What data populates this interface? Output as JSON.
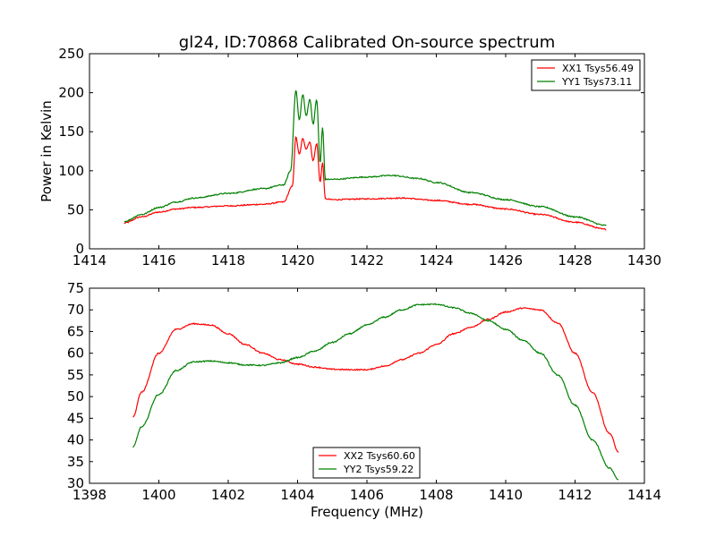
{
  "chart_data": [
    {
      "type": "line",
      "title": "gl24, ID:70868 Calibrated On-source spectrum",
      "xlabel": "",
      "ylabel": "Power in Kelvin",
      "xlim": [
        1414,
        1430
      ],
      "ylim": [
        0,
        250
      ],
      "xticks": [
        "1414",
        "1416",
        "1418",
        "1420",
        "1422",
        "1424",
        "1426",
        "1428",
        "1430"
      ],
      "yticks": [
        "0",
        "50",
        "100",
        "150",
        "200",
        "250"
      ],
      "legend_position": "top-right",
      "series": [
        {
          "name": "XX1 Tsys56.49",
          "color": "#ff0000",
          "x": [
            1415.0,
            1415.5,
            1416.0,
            1416.5,
            1417.0,
            1418.0,
            1419.0,
            1419.6,
            1419.85,
            1419.95,
            1420.05,
            1420.15,
            1420.25,
            1420.35,
            1420.45,
            1420.55,
            1420.65,
            1420.72,
            1420.8,
            1421.0,
            1422.0,
            1423.0,
            1424.0,
            1425.0,
            1426.0,
            1427.0,
            1428.0,
            1428.9
          ],
          "values": [
            33,
            41,
            47,
            51,
            53,
            55,
            57,
            60,
            80,
            143,
            121,
            141,
            128,
            137,
            113,
            135,
            86,
            110,
            64,
            63,
            64,
            65,
            62,
            57,
            51,
            44,
            34,
            25
          ]
        },
        {
          "name": "YY1 Tsys73.11",
          "color": "#008000",
          "x": [
            1415.0,
            1415.5,
            1416.0,
            1416.5,
            1417.0,
            1418.0,
            1419.0,
            1419.6,
            1419.8,
            1419.95,
            1420.05,
            1420.15,
            1420.25,
            1420.35,
            1420.45,
            1420.55,
            1420.65,
            1420.72,
            1420.8,
            1421.0,
            1422.0,
            1422.7,
            1423.5,
            1424.0,
            1425.0,
            1426.0,
            1427.0,
            1428.0,
            1428.9
          ],
          "values": [
            35,
            44,
            53,
            60,
            65,
            71,
            77,
            82,
            100,
            203,
            165,
            198,
            170,
            192,
            160,
            191,
            110,
            155,
            89,
            89,
            92,
            94,
            90,
            85,
            72,
            63,
            54,
            41,
            30
          ]
        }
      ]
    },
    {
      "type": "line",
      "title": "",
      "xlabel": "Frequency (MHz)",
      "ylabel": "",
      "xlim": [
        1398,
        1414
      ],
      "ylim": [
        30,
        75
      ],
      "xticks": [
        "1398",
        "1400",
        "1402",
        "1404",
        "1406",
        "1408",
        "1410",
        "1412",
        "1414"
      ],
      "yticks": [
        "30",
        "35",
        "40",
        "45",
        "50",
        "55",
        "60",
        "65",
        "70",
        "75"
      ],
      "legend_position": "bottom-center",
      "series": [
        {
          "name": "XX2 Tsys60.60",
          "color": "#ff0000",
          "x": [
            1399.25,
            1399.5,
            1400.0,
            1400.5,
            1401.0,
            1401.5,
            1402.0,
            1402.5,
            1403.0,
            1403.5,
            1404.0,
            1404.5,
            1405.0,
            1405.5,
            1406.0,
            1406.5,
            1407.0,
            1407.5,
            1408.0,
            1408.5,
            1409.0,
            1409.5,
            1410.0,
            1410.5,
            1411.0,
            1411.5,
            1412.0,
            1412.5,
            1413.0,
            1413.25
          ],
          "values": [
            45.2,
            51,
            60,
            65.5,
            66.8,
            66.5,
            64.5,
            62,
            60,
            58.5,
            57.5,
            56.8,
            56.3,
            56.2,
            56.2,
            57,
            58.5,
            60,
            62,
            64.5,
            66,
            67.8,
            69.5,
            70.4,
            70,
            67,
            60,
            51,
            41.5,
            37.2
          ]
        },
        {
          "name": "YY2 Tsys59.22",
          "color": "#008000",
          "x": [
            1399.25,
            1399.5,
            1400.0,
            1400.5,
            1401.0,
            1401.5,
            1402.0,
            1402.5,
            1403.0,
            1403.5,
            1404.0,
            1404.5,
            1405.0,
            1405.5,
            1406.0,
            1406.5,
            1407.0,
            1407.5,
            1408.0,
            1408.5,
            1409.0,
            1409.5,
            1410.0,
            1410.5,
            1411.0,
            1411.5,
            1412.0,
            1412.5,
            1413.0,
            1413.25
          ],
          "values": [
            38.3,
            43,
            50.5,
            56,
            58,
            58.2,
            57.8,
            57.3,
            57.2,
            57.8,
            59,
            60.5,
            62.5,
            64.5,
            66.5,
            68.3,
            70,
            71.2,
            71.3,
            70.5,
            69.2,
            67.5,
            65.5,
            63,
            60,
            55,
            48,
            40,
            33.5,
            30.8
          ]
        }
      ]
    }
  ]
}
